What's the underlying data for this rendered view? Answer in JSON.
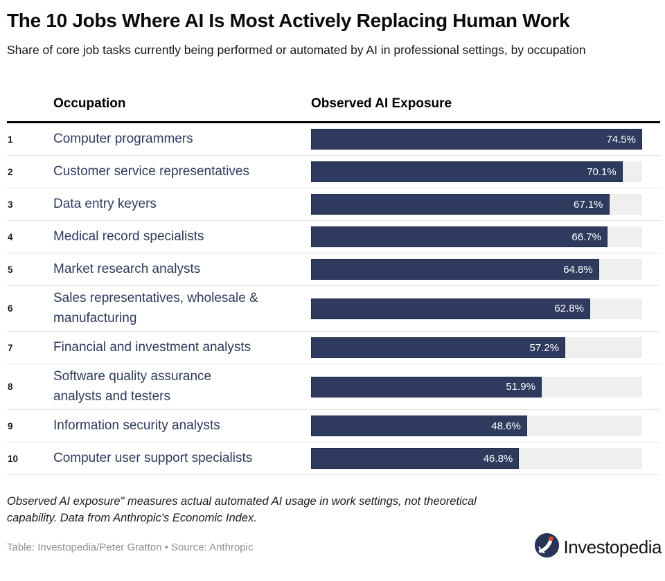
{
  "header": {
    "title": "The 10 Jobs Where AI Is Most Actively Replacing Human Work",
    "subtitle": "Share of core job tasks currently being performed or automated by AI in professional settings, by occupation"
  },
  "table": {
    "columns": {
      "occupation": "Occupation",
      "exposure": "Observed AI Exposure"
    },
    "rows": [
      {
        "rank": "1",
        "occupation": "Computer programmers",
        "value": 74.5,
        "label": "74.5%"
      },
      {
        "rank": "2",
        "occupation": "Customer service representatives",
        "value": 70.1,
        "label": "70.1%"
      },
      {
        "rank": "3",
        "occupation": "Data entry keyers",
        "value": 67.1,
        "label": "67.1%"
      },
      {
        "rank": "4",
        "occupation": "Medical record specialists",
        "value": 66.7,
        "label": "66.7%"
      },
      {
        "rank": "5",
        "occupation": "Market research analysts",
        "value": 64.8,
        "label": "64.8%"
      },
      {
        "rank": "6",
        "occupation": "Sales representatives, wholesale &\nmanufacturing",
        "value": 62.8,
        "label": "62.8%"
      },
      {
        "rank": "7",
        "occupation": "Financial and investment analysts",
        "value": 57.2,
        "label": "57.2%"
      },
      {
        "rank": "8",
        "occupation": "Software quality assurance\nanalysts and testers",
        "value": 51.9,
        "label": "51.9%"
      },
      {
        "rank": "9",
        "occupation": "Information security analysts",
        "value": 48.6,
        "label": "48.6%"
      },
      {
        "rank": "10",
        "occupation": "Computer user support specialists",
        "value": 46.8,
        "label": "46.8%"
      }
    ]
  },
  "chart_data": {
    "type": "bar",
    "title": "The 10 Jobs Where AI Is Most Actively Replacing Human Work",
    "subtitle": "Share of core job tasks currently being performed or automated by AI in professional settings, by occupation",
    "categories": [
      "Computer programmers",
      "Customer service representatives",
      "Data entry keyers",
      "Medical record specialists",
      "Market research analysts",
      "Sales representatives, wholesale & manufacturing",
      "Financial and investment analysts",
      "Software quality assurance analysts and testers",
      "Information security analysts",
      "Computer user support specialists"
    ],
    "values": [
      74.5,
      70.1,
      67.1,
      66.7,
      64.8,
      62.8,
      57.2,
      51.9,
      48.6,
      46.8
    ],
    "value_labels": [
      "74.5%",
      "70.1%",
      "67.1%",
      "66.7%",
      "64.8%",
      "62.8%",
      "57.2%",
      "51.9%",
      "48.6%",
      "46.8%"
    ],
    "xlabel": "Observed AI Exposure",
    "ylabel": "Occupation",
    "orientation": "horizontal",
    "scale_max": 74.5,
    "grid": false,
    "legend": false,
    "bar_color": "#2f3b5e",
    "track_color": "#efefed",
    "label_color": "#ffffff"
  },
  "footer": {
    "note": "Observed AI exposure\" measures actual automated AI usage in work settings, not theoretical\ncapability. Data from Anthropic's Economic Index.",
    "credit": "Table: Investopedia/Peter Gratton • Source: Anthropic",
    "logo_text": "Investopedia"
  }
}
